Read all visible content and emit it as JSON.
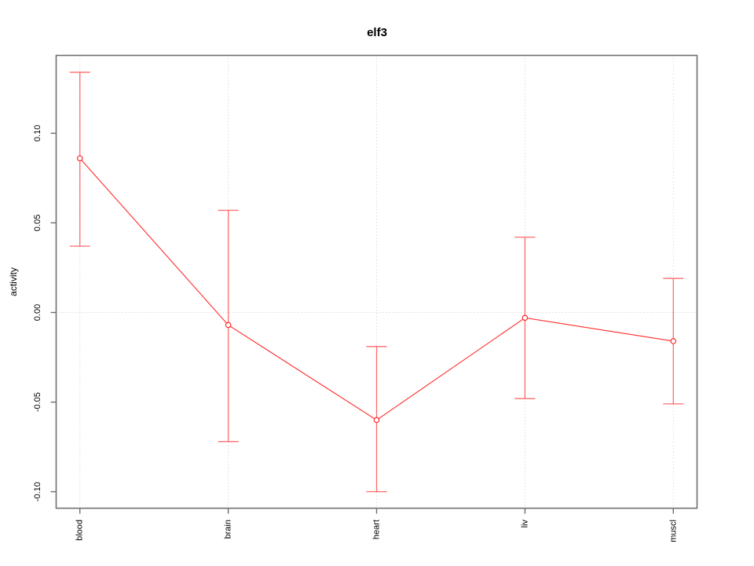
{
  "chart_data": {
    "type": "line",
    "title": "elf3",
    "xlabel": "",
    "ylabel": "activity",
    "categories": [
      "blood",
      "brain",
      "heart",
      "liv",
      "muscl"
    ],
    "series": [
      {
        "name": "elf3",
        "values": [
          0.086,
          -0.007,
          -0.06,
          -0.003,
          -0.016
        ],
        "upper": [
          0.134,
          0.057,
          -0.019,
          0.042,
          0.019
        ],
        "lower": [
          0.037,
          -0.072,
          -0.1,
          -0.048,
          -0.051
        ]
      }
    ],
    "yticks": [
      -0.1,
      -0.05,
      0.0,
      0.05,
      0.1
    ],
    "ytick_labels": [
      "-0.10",
      "-0.05",
      "0.00",
      "0.05",
      "0.10"
    ],
    "ylim": [
      -0.1092,
      0.1434
    ],
    "x_axis_expansion": 0.04,
    "grid": {
      "vertical_at_categories": true,
      "horizontal_at_zero": true,
      "line_style": "dotted"
    },
    "legend_position": "none",
    "marker": "open-circle",
    "colors": {
      "series": "#ff2b2b",
      "error_bar": "#ff6b6b",
      "grid": "#c8c8c8",
      "box": "#6e6e6e",
      "text": "#000000",
      "marker_fill": "#ffffff"
    }
  }
}
